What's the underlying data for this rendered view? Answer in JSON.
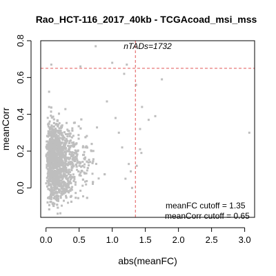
{
  "chart_data": {
    "type": "scatter",
    "title": "Rao_HCT-116_2017_40kb - TCGAcoad_msi_mss",
    "xlabel": "abs(meanFC)",
    "ylabel": "meanCorr",
    "xlim": [
      -0.08,
      3.15
    ],
    "ylim": [
      -0.16,
      0.8
    ],
    "x_ticks": [
      0.0,
      0.5,
      1.0,
      1.5,
      2.0,
      2.5,
      3.0
    ],
    "x_tick_labels": [
      "0.0",
      "0.5",
      "1.0",
      "1.5",
      "2.0",
      "2.5",
      "3.0"
    ],
    "y_ticks": [
      0.0,
      0.2,
      0.4,
      0.6,
      0.8
    ],
    "y_tick_labels": [
      "0.0",
      "0.2",
      "0.4",
      "0.6",
      "0.8"
    ],
    "point_color": "#bebebe",
    "cutoff_color": "#e05555",
    "n_points": 1732,
    "annotation_top": "nTADs=1732",
    "cutoff_labels": [
      "meanFC cutoff = 1.35",
      "meanCorr cutoff = 0.65"
    ],
    "meanFC_cutoff": 1.35,
    "meanCorr_cutoff": 0.65,
    "outliers": [
      {
        "x": 3.07,
        "y": 0.3
      },
      {
        "x": 1.65,
        "y": 0.39
      },
      {
        "x": 1.75,
        "y": 0.59
      },
      {
        "x": 1.55,
        "y": 0.37
      },
      {
        "x": 1.42,
        "y": 0.32
      },
      {
        "x": 1.44,
        "y": 0.19
      },
      {
        "x": 1.42,
        "y": 0.21
      },
      {
        "x": 1.36,
        "y": 0.56
      },
      {
        "x": 1.37,
        "y": 0.12
      },
      {
        "x": 1.3,
        "y": 0.0
      },
      {
        "x": 1.45,
        "y": 0.44
      },
      {
        "x": 1.22,
        "y": 0.67
      },
      {
        "x": 0.75,
        "y": 0.77
      },
      {
        "x": 1.0,
        "y": 0.68
      },
      {
        "x": 0.52,
        "y": 0.66
      },
      {
        "x": 0.08,
        "y": 0.67
      },
      {
        "x": 1.15,
        "y": 0.22
      },
      {
        "x": 1.25,
        "y": 0.13
      },
      {
        "x": 1.28,
        "y": 0.09
      },
      {
        "x": 1.2,
        "y": 0.05
      },
      {
        "x": 0.92,
        "y": 0.47
      },
      {
        "x": 1.05,
        "y": 0.38
      },
      {
        "x": 1.1,
        "y": 0.3
      },
      {
        "x": 1.18,
        "y": 0.62
      }
    ]
  }
}
